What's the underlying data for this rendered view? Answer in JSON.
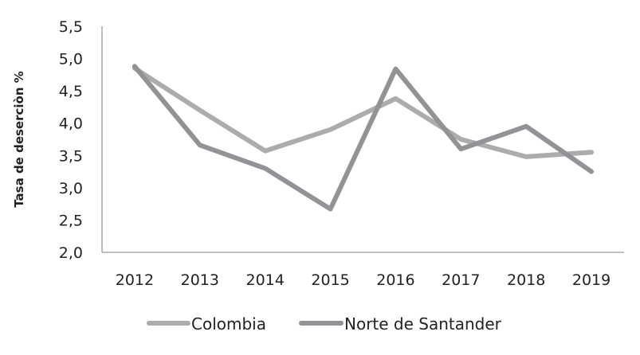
{
  "chart_data": {
    "type": "line",
    "title": "",
    "xlabel": "",
    "ylabel": "Tasa de deserciòn %",
    "categories": [
      "2012",
      "2013",
      "2014",
      "2015",
      "2016",
      "2017",
      "2018",
      "2019"
    ],
    "series": [
      {
        "name": "Colombia",
        "color": "#acacac",
        "values": [
          4.85,
          4.2,
          3.57,
          3.9,
          4.38,
          3.75,
          3.48,
          3.55
        ]
      },
      {
        "name": "Norte de Santander",
        "color": "#939397",
        "values": [
          4.88,
          3.66,
          3.3,
          2.67,
          4.84,
          3.6,
          3.95,
          3.25
        ]
      }
    ],
    "ylim": [
      2.0,
      5.5
    ],
    "yticks": [
      "2,0",
      "2,5",
      "3,0",
      "3,5",
      "4,0",
      "4,5",
      "5,0",
      "5,5"
    ],
    "ytick_values": [
      2.0,
      2.5,
      3.0,
      3.5,
      4.0,
      4.5,
      5.0,
      5.5
    ],
    "grid": false,
    "legend_position": "bottom"
  },
  "legend": {
    "items": [
      {
        "label": "Colombia",
        "color": "#acacac"
      },
      {
        "label": "Norte de Santander",
        "color": "#939397"
      }
    ]
  },
  "colors": {
    "axis": "#9a9a9a",
    "text": "#222222",
    "background": "#ffffff"
  }
}
